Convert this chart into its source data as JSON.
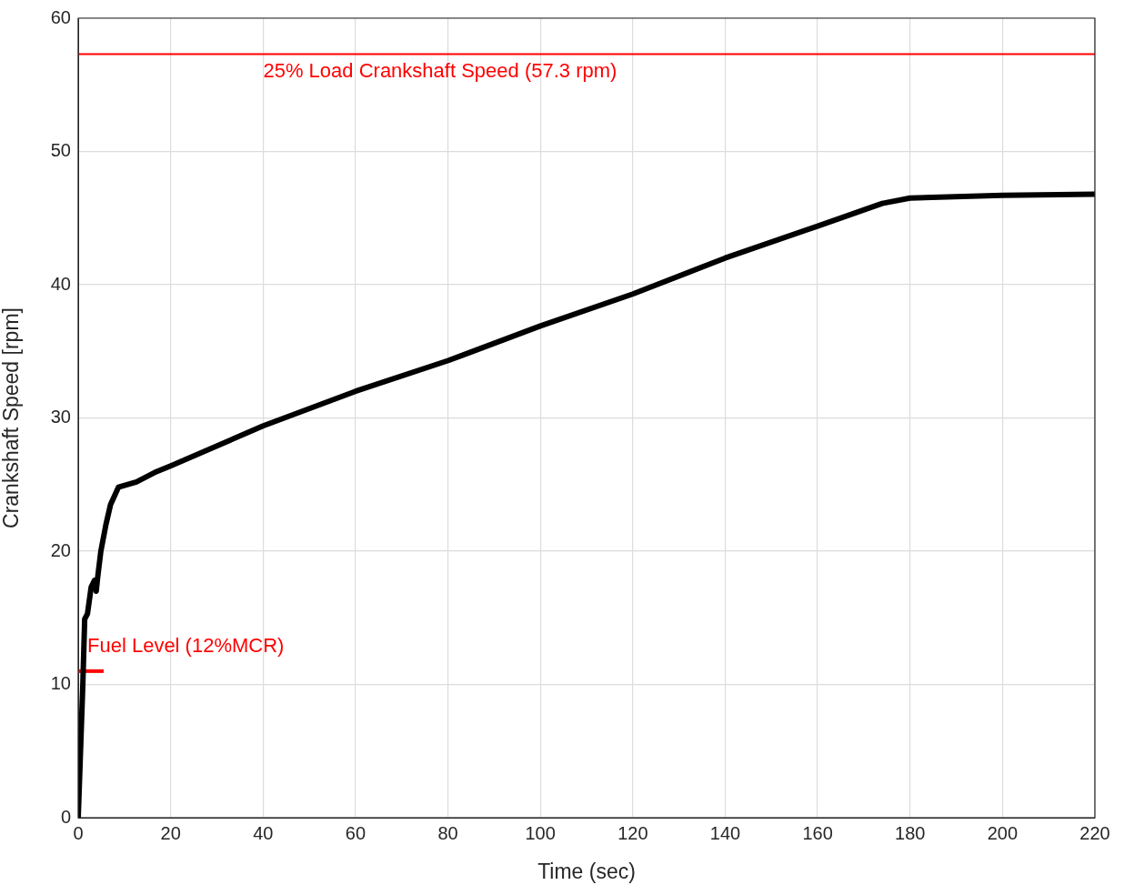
{
  "chart_data": {
    "type": "line",
    "xlabel": "Time (sec)",
    "ylabel": "Crankshaft Speed [rpm]",
    "xlim": [
      0,
      220
    ],
    "xticks": [
      0,
      20,
      40,
      60,
      80,
      100,
      120,
      140,
      160,
      180,
      200,
      220
    ],
    "ylim": [
      0,
      60
    ],
    "yticks": [
      0,
      10,
      20,
      30,
      40,
      50,
      60
    ],
    "grid": true,
    "legend": false,
    "marker": "none",
    "line_style": "solid",
    "series": [
      {
        "color": "#000000",
        "x": [
          0,
          1,
          1.4,
          2,
          2.8,
          3.5,
          3.9,
          4.2,
          4.9,
          6,
          7,
          8.7,
          12.6,
          16.5,
          20,
          40,
          60,
          80,
          100,
          120,
          140,
          160,
          174,
          180,
          200,
          220
        ],
        "values": [
          0,
          10,
          14.9,
          15.3,
          17.3,
          17.8,
          17.0,
          18.0,
          20,
          22,
          23.5,
          24.8,
          25.2,
          25.9,
          26.4,
          29.4,
          32.0,
          34.3,
          36.9,
          39.3,
          42.0,
          44.4,
          46.1,
          46.5,
          46.7,
          46.8
        ]
      },
      {
        "name": "Fuel Level (12%MCR)",
        "color": "#ff0000",
        "x": [
          0,
          5.5
        ],
        "values": [
          11,
          11
        ]
      }
    ],
    "ref_lines": [
      {
        "axis": "y",
        "value": 57.3,
        "label": "25% Load Crankshaft Speed (57.3 rpm)",
        "color": "#ff0000"
      }
    ]
  }
}
